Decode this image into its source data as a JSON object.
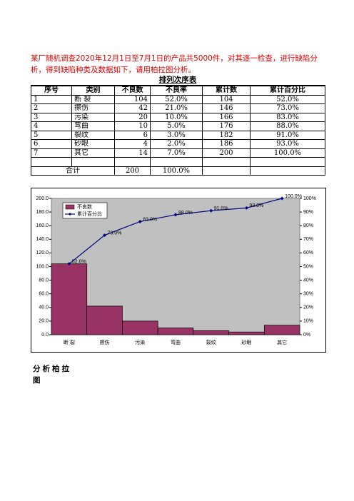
{
  "intro": "某厂随机调查2020年12月1日至7月1日的产品共5000件，对其逐一检查，进行缺陷分析，得到缺陷种类及数据如下，请用柏拉图分析。",
  "table": {
    "title": "排列次序表",
    "headers": [
      "序号",
      "类别",
      "不良数",
      "不良率",
      "累计数",
      "累计百分比"
    ],
    "rows": [
      [
        "1",
        "断 裂",
        "104",
        "52.0%",
        "104",
        "52.0%"
      ],
      [
        "2",
        "擦伤",
        "42",
        "21.0%",
        "146",
        "73.0%"
      ],
      [
        "3",
        "污染",
        "20",
        "10.0%",
        "166",
        "83.0%"
      ],
      [
        "4",
        "弯曲",
        "10",
        "5.0%",
        "176",
        "88.0%"
      ],
      [
        "5",
        "裂纹",
        "6",
        "3.0%",
        "182",
        "91.0%"
      ],
      [
        "6",
        "砂眼",
        "4",
        "2.0%",
        "186",
        "93.0%"
      ],
      [
        "7",
        "其它",
        "14",
        "7.0%",
        "200",
        "100.0%"
      ]
    ],
    "total": [
      "合计",
      "200",
      "100.0%"
    ]
  },
  "chart_data": {
    "type": "pareto",
    "categories": [
      "断 裂",
      "擦伤",
      "污染",
      "弯曲",
      "裂纹",
      "砂眼",
      "其它"
    ],
    "series": [
      {
        "name": "不良数",
        "color": "#993366",
        "values": [
          104,
          42,
          20,
          10,
          6,
          4,
          14
        ]
      },
      {
        "name": "累计百分比",
        "color": "#000080",
        "axis": "y2",
        "values": [
          52,
          73,
          83,
          88,
          91,
          93,
          100
        ],
        "value_labels": [
          "52.0%",
          "73.0%",
          "83.0%",
          "88.0%",
          "91.0%",
          "93.0%",
          "100.0%"
        ]
      }
    ],
    "ylim": [
      0,
      200
    ],
    "yticks": [
      {
        "value": 0,
        "label": "0.0"
      },
      {
        "value": 20,
        "label": "20.0"
      },
      {
        "value": 40,
        "label": "40.0"
      },
      {
        "value": 60,
        "label": "60.0"
      },
      {
        "value": 80,
        "label": "80.0"
      },
      {
        "value": 100,
        "label": "100.0"
      },
      {
        "value": 120,
        "label": "120.0"
      },
      {
        "value": 140,
        "label": "140.0"
      },
      {
        "value": 160,
        "label": "160.0"
      },
      {
        "value": 180,
        "label": "180.0"
      },
      {
        "value": 200,
        "label": "200.0"
      }
    ],
    "y2lim": [
      0,
      100
    ],
    "y2ticks": [
      {
        "value": 0,
        "label": "0%"
      },
      {
        "value": 10,
        "label": "10%"
      },
      {
        "value": 20,
        "label": "20%"
      },
      {
        "value": 30,
        "label": "30%"
      },
      {
        "value": 40,
        "label": "40%"
      },
      {
        "value": 50,
        "label": "50%"
      },
      {
        "value": 60,
        "label": "60%"
      },
      {
        "value": 70,
        "label": "70%"
      },
      {
        "value": 80,
        "label": "80%"
      },
      {
        "value": 90,
        "label": "90%"
      },
      {
        "value": 100,
        "label": "100%"
      }
    ],
    "legend": "upper left"
  },
  "footer": "分析柏拉图"
}
